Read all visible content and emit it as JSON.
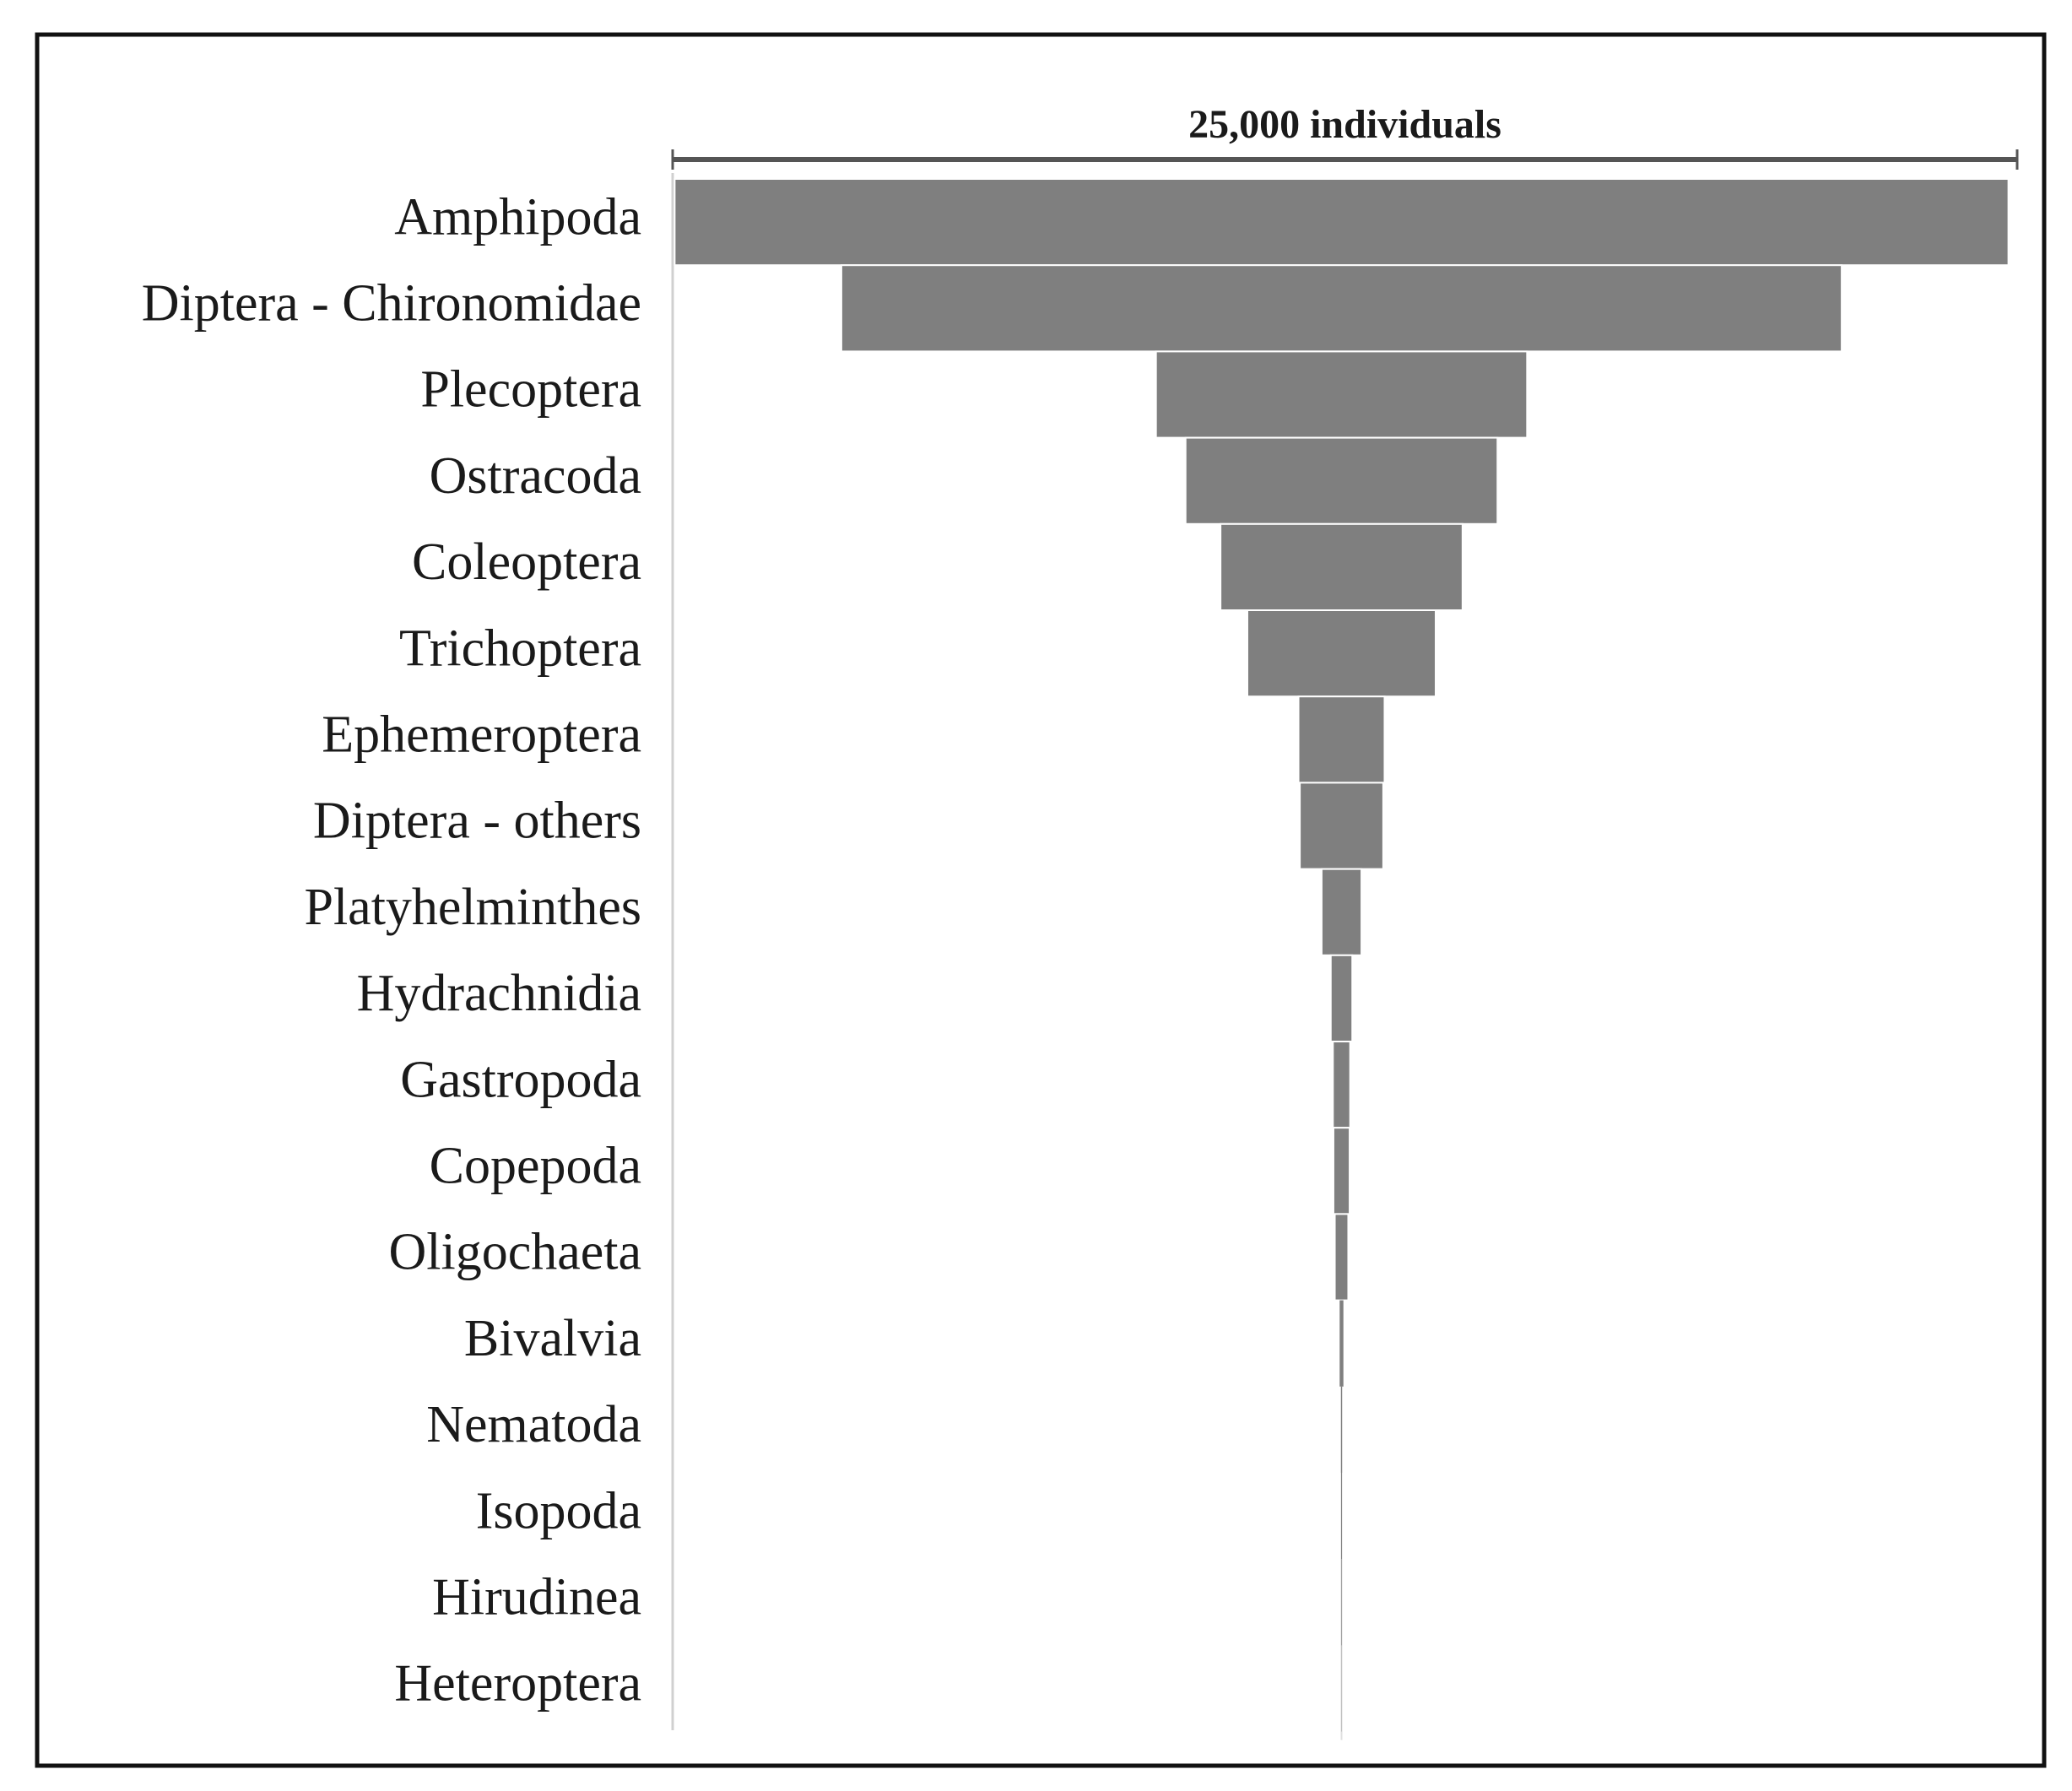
{
  "chart_data": {
    "type": "funnel",
    "scale_bar": {
      "value": 25000,
      "label": "25,000 individuals"
    },
    "color": "#7f7f7f",
    "categories": [
      "Amphipoda",
      "Diptera - Chironomidae",
      "Plecoptera",
      "Ostracoda",
      "Coleoptera",
      "Trichoptera",
      "Ephemeroptera",
      "Diptera - others",
      "Platyhelminthes",
      "Hydrachnidia",
      "Gastropoda",
      "Copepoda",
      "Oligochaeta",
      "Bivalvia",
      "Nematoda",
      "Isopoda",
      "Hirudinea",
      "Heteroptera"
    ],
    "values": [
      24800,
      18600,
      6900,
      5800,
      4500,
      3500,
      1600,
      1550,
      740,
      400,
      320,
      300,
      250,
      70,
      20,
      15,
      10,
      5
    ]
  }
}
